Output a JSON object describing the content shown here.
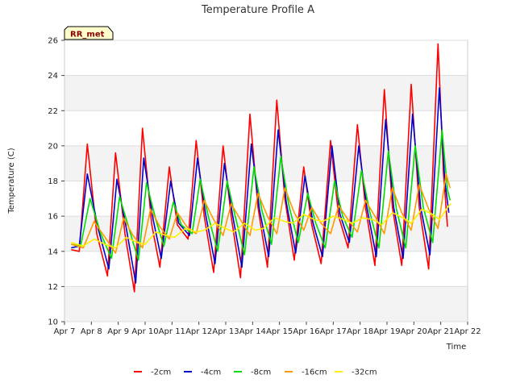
{
  "chart_data": {
    "type": "line",
    "title": "Temperature Profile A",
    "xlabel": "Time",
    "ylabel": "Temperature (C)",
    "badge": "RR_met",
    "x_ticks": [
      "Apr 7",
      "Apr 8",
      "Apr 9",
      "Apr 10",
      "Apr 11",
      "Apr 12",
      "Apr 13",
      "Apr 14",
      "Apr 15",
      "Apr 16",
      "Apr 17",
      "Apr 18",
      "Apr 19",
      "Apr 20",
      "Apr 21",
      "Apr 22"
    ],
    "y_ticks": [
      10,
      12,
      14,
      16,
      18,
      20,
      22,
      24,
      26
    ],
    "xlim": [
      0,
      15
    ],
    "ylim": [
      10,
      26
    ],
    "grid": true,
    "legend_position": "bottom",
    "x_unit": "days since Apr 7",
    "series": [
      {
        "name": "-2cm",
        "color": "#ff0000",
        "points": [
          [
            0.25,
            14.1
          ],
          [
            0.55,
            14.0
          ],
          [
            0.85,
            20.1
          ],
          [
            1.2,
            15.0
          ],
          [
            1.6,
            12.6
          ],
          [
            1.9,
            19.6
          ],
          [
            2.25,
            15.0
          ],
          [
            2.6,
            11.7
          ],
          [
            2.9,
            21.0
          ],
          [
            3.25,
            15.5
          ],
          [
            3.55,
            13.1
          ],
          [
            3.9,
            18.8
          ],
          [
            4.2,
            15.5
          ],
          [
            4.6,
            14.7
          ],
          [
            4.9,
            20.3
          ],
          [
            5.2,
            16.0
          ],
          [
            5.55,
            12.8
          ],
          [
            5.9,
            20.0
          ],
          [
            6.2,
            16.0
          ],
          [
            6.55,
            12.5
          ],
          [
            6.9,
            21.8
          ],
          [
            7.2,
            16.5
          ],
          [
            7.55,
            13.1
          ],
          [
            7.9,
            22.6
          ],
          [
            8.2,
            17.0
          ],
          [
            8.55,
            13.5
          ],
          [
            8.9,
            18.8
          ],
          [
            9.2,
            15.5
          ],
          [
            9.55,
            13.3
          ],
          [
            9.9,
            20.3
          ],
          [
            10.2,
            16.0
          ],
          [
            10.55,
            14.2
          ],
          [
            10.9,
            21.2
          ],
          [
            11.2,
            16.5
          ],
          [
            11.55,
            13.2
          ],
          [
            11.9,
            23.2
          ],
          [
            12.2,
            16.5
          ],
          [
            12.55,
            13.2
          ],
          [
            12.9,
            23.5
          ],
          [
            13.2,
            16.5
          ],
          [
            13.55,
            13.0
          ],
          [
            13.9,
            25.8
          ],
          [
            14.1,
            18.5
          ],
          [
            14.25,
            15.4
          ]
        ]
      },
      {
        "name": "-4cm",
        "color": "#0000cc",
        "points": [
          [
            0.25,
            14.2
          ],
          [
            0.55,
            14.3
          ],
          [
            0.85,
            18.4
          ],
          [
            1.25,
            15.3
          ],
          [
            1.65,
            13.0
          ],
          [
            1.95,
            18.1
          ],
          [
            2.3,
            15.3
          ],
          [
            2.65,
            12.2
          ],
          [
            2.95,
            19.3
          ],
          [
            3.3,
            15.8
          ],
          [
            3.6,
            13.6
          ],
          [
            3.95,
            18.0
          ],
          [
            4.25,
            15.6
          ],
          [
            4.65,
            14.9
          ],
          [
            4.95,
            19.3
          ],
          [
            5.25,
            16.1
          ],
          [
            5.6,
            13.3
          ],
          [
            5.95,
            19.0
          ],
          [
            6.25,
            16.1
          ],
          [
            6.6,
            13.1
          ],
          [
            6.95,
            20.1
          ],
          [
            7.25,
            16.4
          ],
          [
            7.6,
            13.7
          ],
          [
            7.95,
            20.9
          ],
          [
            8.25,
            16.8
          ],
          [
            8.6,
            13.9
          ],
          [
            8.95,
            18.3
          ],
          [
            9.25,
            15.6
          ],
          [
            9.6,
            13.7
          ],
          [
            9.95,
            20.0
          ],
          [
            10.25,
            16.1
          ],
          [
            10.6,
            14.5
          ],
          [
            10.95,
            20.0
          ],
          [
            11.25,
            16.5
          ],
          [
            11.6,
            13.7
          ],
          [
            11.95,
            21.5
          ],
          [
            12.25,
            16.5
          ],
          [
            12.6,
            13.6
          ],
          [
            12.95,
            21.8
          ],
          [
            13.25,
            16.5
          ],
          [
            13.6,
            13.8
          ],
          [
            13.95,
            23.3
          ],
          [
            14.15,
            18.0
          ],
          [
            14.3,
            16.2
          ]
        ]
      },
      {
        "name": "-8cm",
        "color": "#00dd00",
        "points": [
          [
            0.25,
            14.4
          ],
          [
            0.6,
            14.3
          ],
          [
            0.95,
            17.0
          ],
          [
            1.35,
            15.0
          ],
          [
            1.75,
            13.6
          ],
          [
            2.05,
            17.1
          ],
          [
            2.4,
            15.3
          ],
          [
            2.75,
            13.5
          ],
          [
            3.05,
            17.9
          ],
          [
            3.4,
            15.8
          ],
          [
            3.7,
            14.3
          ],
          [
            4.05,
            16.8
          ],
          [
            4.35,
            15.5
          ],
          [
            4.75,
            15.0
          ],
          [
            5.05,
            18.1
          ],
          [
            5.35,
            16.0
          ],
          [
            5.7,
            14.0
          ],
          [
            6.05,
            18.0
          ],
          [
            6.35,
            16.0
          ],
          [
            6.7,
            13.8
          ],
          [
            7.05,
            18.8
          ],
          [
            7.35,
            16.3
          ],
          [
            7.7,
            14.4
          ],
          [
            8.05,
            19.4
          ],
          [
            8.35,
            16.6
          ],
          [
            8.7,
            14.5
          ],
          [
            9.05,
            17.3
          ],
          [
            9.35,
            15.6
          ],
          [
            9.7,
            14.2
          ],
          [
            10.05,
            18.0
          ],
          [
            10.35,
            16.0
          ],
          [
            10.7,
            14.8
          ],
          [
            11.05,
            18.6
          ],
          [
            11.35,
            16.3
          ],
          [
            11.7,
            14.2
          ],
          [
            12.05,
            19.7
          ],
          [
            12.35,
            16.4
          ],
          [
            12.7,
            14.2
          ],
          [
            13.05,
            20.0
          ],
          [
            13.35,
            16.5
          ],
          [
            13.7,
            14.5
          ],
          [
            14.05,
            20.9
          ],
          [
            14.25,
            17.5
          ],
          [
            14.35,
            16.9
          ]
        ]
      },
      {
        "name": "-16cm",
        "color": "#ff9900",
        "points": [
          [
            0.25,
            14.4
          ],
          [
            0.7,
            14.2
          ],
          [
            1.1,
            15.7
          ],
          [
            1.55,
            14.7
          ],
          [
            1.9,
            13.9
          ],
          [
            2.2,
            15.9
          ],
          [
            2.55,
            14.9
          ],
          [
            2.9,
            14.2
          ],
          [
            3.2,
            16.4
          ],
          [
            3.55,
            15.4
          ],
          [
            3.9,
            14.7
          ],
          [
            4.2,
            16.2
          ],
          [
            4.55,
            15.4
          ],
          [
            4.9,
            15.0
          ],
          [
            5.2,
            16.9
          ],
          [
            5.55,
            15.8
          ],
          [
            5.9,
            14.9
          ],
          [
            6.2,
            16.7
          ],
          [
            6.55,
            15.8
          ],
          [
            6.9,
            14.9
          ],
          [
            7.2,
            17.3
          ],
          [
            7.55,
            16.0
          ],
          [
            7.9,
            15.0
          ],
          [
            8.2,
            17.6
          ],
          [
            8.55,
            16.2
          ],
          [
            8.9,
            15.2
          ],
          [
            9.2,
            16.5
          ],
          [
            9.55,
            15.6
          ],
          [
            9.9,
            15.0
          ],
          [
            10.2,
            16.6
          ],
          [
            10.55,
            15.8
          ],
          [
            10.9,
            15.1
          ],
          [
            11.2,
            16.9
          ],
          [
            11.55,
            16.0
          ],
          [
            11.9,
            15.0
          ],
          [
            12.2,
            17.6
          ],
          [
            12.55,
            16.2
          ],
          [
            12.9,
            15.2
          ],
          [
            13.2,
            17.8
          ],
          [
            13.55,
            16.4
          ],
          [
            13.9,
            15.3
          ],
          [
            14.2,
            18.4
          ],
          [
            14.35,
            17.6
          ]
        ]
      },
      {
        "name": "-32cm",
        "color": "#ffee00",
        "points": [
          [
            0.25,
            14.5
          ],
          [
            0.7,
            14.3
          ],
          [
            1.1,
            14.7
          ],
          [
            1.5,
            14.4
          ],
          [
            1.9,
            14.2
          ],
          [
            2.3,
            14.8
          ],
          [
            2.7,
            14.5
          ],
          [
            3.0,
            14.4
          ],
          [
            3.4,
            15.1
          ],
          [
            3.8,
            14.9
          ],
          [
            4.1,
            14.8
          ],
          [
            4.5,
            15.3
          ],
          [
            4.9,
            15.1
          ],
          [
            5.2,
            15.2
          ],
          [
            5.6,
            15.6
          ],
          [
            6.0,
            15.3
          ],
          [
            6.3,
            15.1
          ],
          [
            6.7,
            15.6
          ],
          [
            7.1,
            15.2
          ],
          [
            7.4,
            15.3
          ],
          [
            7.8,
            15.9
          ],
          [
            8.2,
            15.7
          ],
          [
            8.5,
            15.6
          ],
          [
            8.9,
            16.1
          ],
          [
            9.3,
            15.8
          ],
          [
            9.6,
            15.7
          ],
          [
            10.0,
            16.0
          ],
          [
            10.4,
            15.8
          ],
          [
            10.7,
            15.6
          ],
          [
            11.1,
            15.9
          ],
          [
            11.5,
            15.8
          ],
          [
            11.8,
            15.5
          ],
          [
            12.2,
            16.2
          ],
          [
            12.6,
            15.9
          ],
          [
            12.9,
            15.6
          ],
          [
            13.3,
            16.4
          ],
          [
            13.7,
            16.1
          ],
          [
            13.95,
            15.8
          ],
          [
            14.3,
            16.6
          ],
          [
            14.38,
            16.7
          ]
        ]
      }
    ]
  }
}
